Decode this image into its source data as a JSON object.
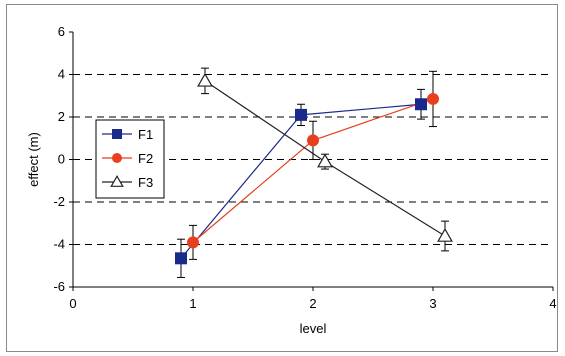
{
  "chart_data": {
    "type": "line",
    "title": "",
    "xlabel": "level",
    "ylabel": "effect (m)",
    "xlim": [
      0,
      4
    ],
    "ylim": [
      -6,
      6
    ],
    "x_ticks": [
      "0",
      "1",
      "2",
      "3",
      "4"
    ],
    "y_ticks": [
      "6",
      "4",
      "2",
      "0",
      "-2",
      "-4",
      "-6"
    ],
    "grid": "horizontal dashed",
    "legend_position": "left",
    "series": [
      {
        "name": "F1",
        "color": "#1a2a8a",
        "marker": "square",
        "points": [
          {
            "x": 0.9,
            "y": -4.65,
            "err": 0.9
          },
          {
            "x": 1.9,
            "y": 2.1,
            "err": 0.5
          },
          {
            "x": 2.9,
            "y": 2.6,
            "err": 0.7
          }
        ]
      },
      {
        "name": "F2",
        "color": "#e8401c",
        "marker": "circle",
        "points": [
          {
            "x": 1.0,
            "y": -3.9,
            "err": 0.8
          },
          {
            "x": 2.0,
            "y": 0.9,
            "err": 0.9
          },
          {
            "x": 3.0,
            "y": 2.85,
            "err": 1.3
          }
        ]
      },
      {
        "name": "F3",
        "color": "#222222",
        "marker": "triangle",
        "points": [
          {
            "x": 1.1,
            "y": 3.7,
            "err": 0.6
          },
          {
            "x": 2.1,
            "y": -0.1,
            "err": 0.35
          },
          {
            "x": 3.1,
            "y": -3.6,
            "err": 0.7
          }
        ]
      }
    ]
  }
}
